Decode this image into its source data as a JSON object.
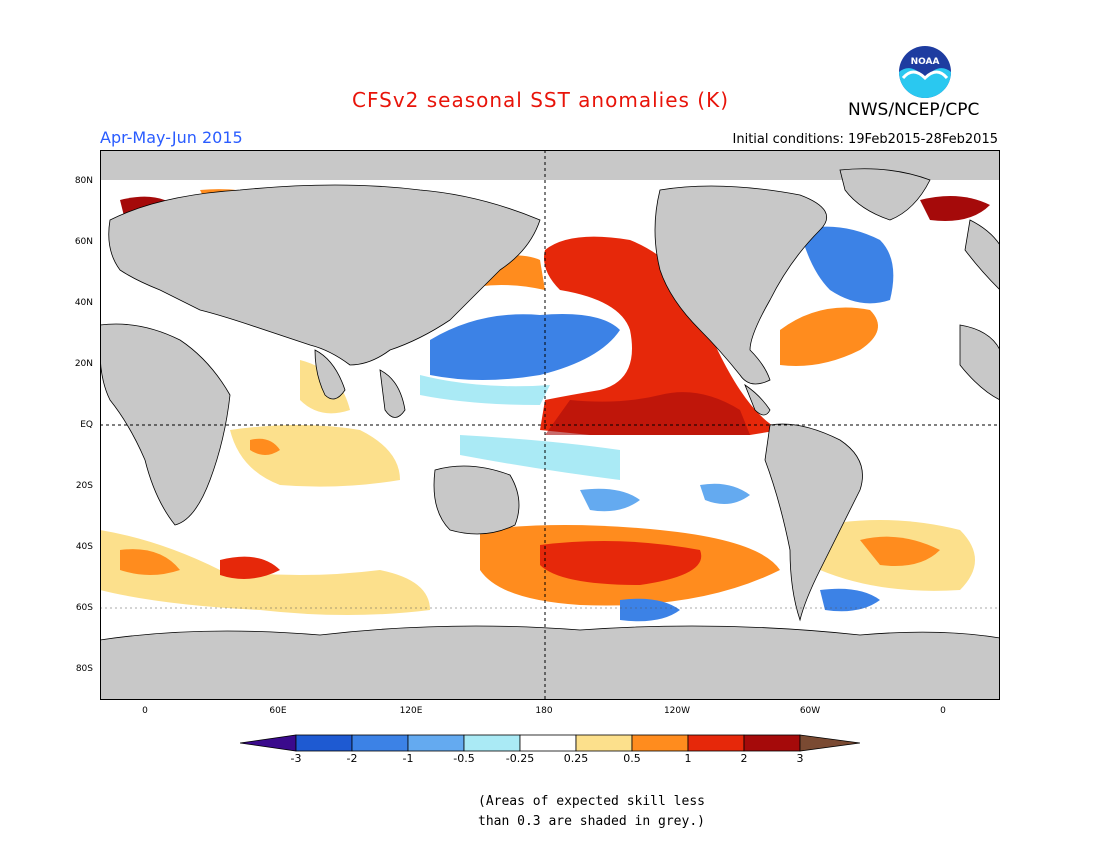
{
  "header": {
    "title": "CFSv2 seasonal SST anomalies (K)",
    "organization": "NWS/NCEP/CPC",
    "logo_text": "NOAA",
    "period": "Apr-May-Jun 2015",
    "initial_conditions": "Initial conditions: 19Feb2015-28Feb2015"
  },
  "map": {
    "lat_labels": [
      "80N",
      "60N",
      "40N",
      "20N",
      "EQ",
      "20S",
      "40S",
      "60S",
      "80S"
    ],
    "lon_labels": [
      "0",
      "60E",
      "120E",
      "180",
      "120W",
      "60W",
      "0"
    ],
    "land_color": "#c8c8c8",
    "skill_mask_color": "#b4b4b4"
  },
  "colorbar": {
    "tick_labels": [
      "-3",
      "-2",
      "-1",
      "-0.5",
      "-0.25",
      "0.25",
      "0.5",
      "1",
      "2",
      "3"
    ],
    "colors": [
      "#3a0a8c",
      "#1e5ad2",
      "#3c82e6",
      "#64aaf0",
      "#aaeaf5",
      "#ffffff",
      "#fce08c",
      "#ff8c1e",
      "#e6280a",
      "#a50a0a",
      "#7a4a32"
    ]
  },
  "footnote": {
    "line1": "(Areas of expected skill less",
    "line2": "than 0.3 are shaded in grey.)"
  }
}
